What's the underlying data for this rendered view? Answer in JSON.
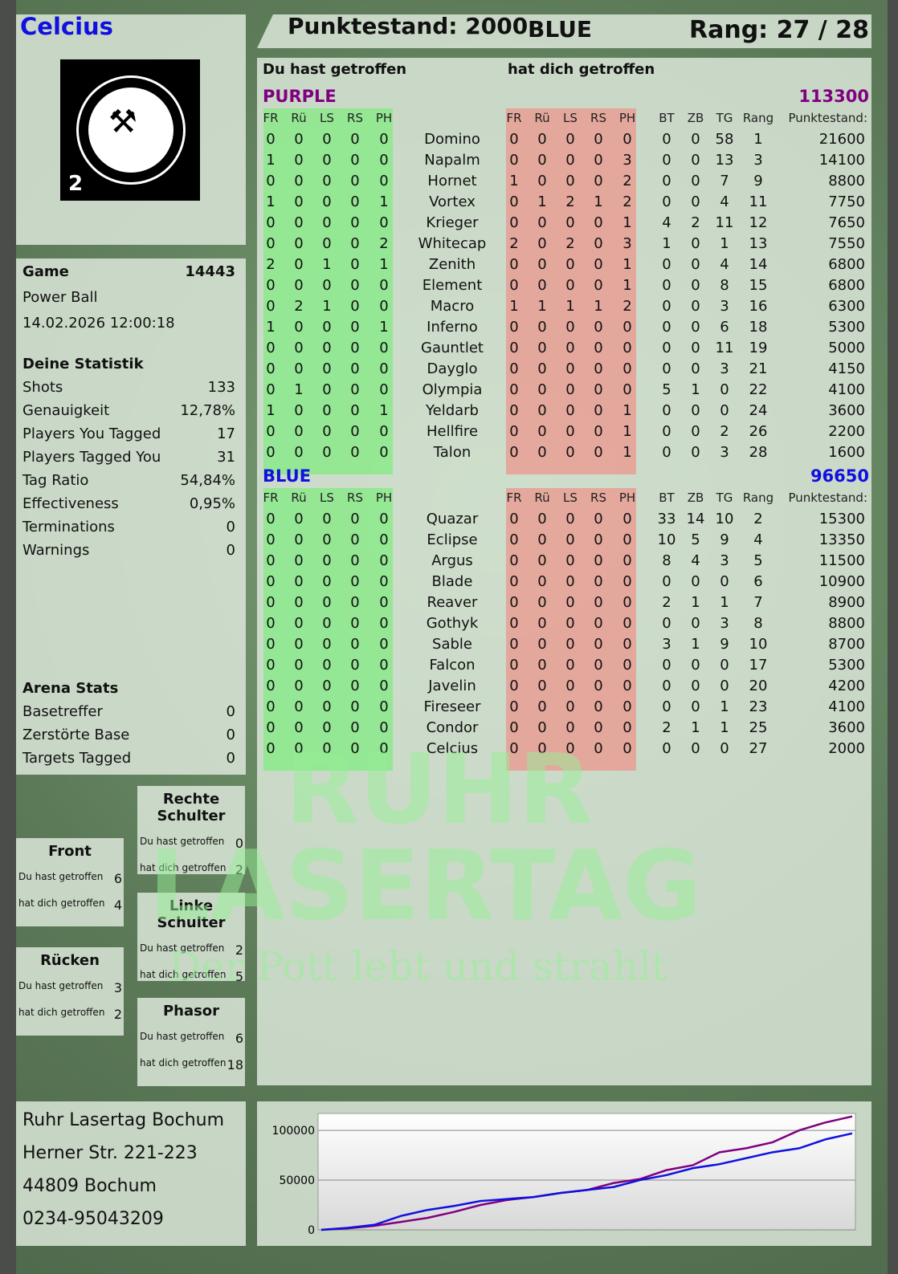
{
  "header": {
    "player": "Celcius",
    "score_label": "Punktestand: 2000",
    "team": "BLUE",
    "rank_label": "Rang: 27 / 28"
  },
  "logo": {
    "text": "RUHR LASERTAG",
    "badge": "2"
  },
  "game": {
    "label": "Game",
    "id": "14443",
    "mode": "Power Ball",
    "datetime": "14.02.2026 12:00:18"
  },
  "stats": {
    "heading": "Deine Statistik",
    "items": [
      {
        "label": "Shots",
        "value": "133"
      },
      {
        "label": "Genauigkeit",
        "value": "12,78%"
      },
      {
        "label": "Players You Tagged",
        "value": "17"
      },
      {
        "label": "Players Tagged You",
        "value": "31"
      },
      {
        "label": "Tag Ratio",
        "value": "54,84%"
      },
      {
        "label": "Effectiveness",
        "value": "0,95%"
      },
      {
        "label": "Terminations",
        "value": "0"
      },
      {
        "label": "Warnings",
        "value": "0"
      }
    ]
  },
  "arena": {
    "heading": "Arena Stats",
    "items": [
      {
        "label": "Basetreffer",
        "value": "0"
      },
      {
        "label": "Zerstörte Base",
        "value": "0"
      },
      {
        "label": "Targets Tagged",
        "value": "0"
      }
    ]
  },
  "hits": {
    "you_hit": "Du hast getroffen",
    "hit_you": "hat dich getroffen",
    "zones": [
      {
        "name": "Rechte Schulter",
        "you_hit": "0",
        "hit_you": "2"
      },
      {
        "name": "Front",
        "you_hit": "6",
        "hit_you": "4"
      },
      {
        "name": "Linke Schulter",
        "you_hit": "2",
        "hit_you": "5"
      },
      {
        "name": "Rücken",
        "you_hit": "3",
        "hit_you": "2"
      },
      {
        "name": "Phasor",
        "you_hit": "6",
        "hit_you": "18"
      }
    ]
  },
  "address": [
    "Ruhr Lasertag Bochum",
    "Herner Str. 221-223",
    "44809 Bochum",
    "0234-95043209"
  ],
  "table": {
    "you_hit_label": "Du hast getroffen",
    "hit_you_label": "hat dich getroffen",
    "hit_cols": [
      "FR",
      "Rü",
      "LS",
      "RS",
      "PH"
    ],
    "stat_cols": [
      "BT",
      "ZB",
      "TG",
      "Rang"
    ],
    "points_col": "Punktestand:",
    "teams": [
      {
        "name": "PURPLE",
        "color": "#800080",
        "total": "113300",
        "players": [
          [
            "Domino",
            [
              0,
              0,
              0,
              0,
              0
            ],
            [
              0,
              0,
              0,
              0,
              0
            ],
            [
              0,
              0,
              58,
              1
            ],
            21600
          ],
          [
            "Napalm",
            [
              1,
              0,
              0,
              0,
              0
            ],
            [
              0,
              0,
              0,
              0,
              3
            ],
            [
              0,
              0,
              13,
              3
            ],
            14100
          ],
          [
            "Hornet",
            [
              0,
              0,
              0,
              0,
              0
            ],
            [
              1,
              0,
              0,
              0,
              2
            ],
            [
              0,
              0,
              7,
              9
            ],
            8800
          ],
          [
            "Vortex",
            [
              1,
              0,
              0,
              0,
              1
            ],
            [
              0,
              1,
              2,
              1,
              2
            ],
            [
              0,
              0,
              4,
              11
            ],
            7750
          ],
          [
            "Krieger",
            [
              0,
              0,
              0,
              0,
              0
            ],
            [
              0,
              0,
              0,
              0,
              1
            ],
            [
              4,
              2,
              11,
              12
            ],
            7650
          ],
          [
            "Whitecap",
            [
              0,
              0,
              0,
              0,
              2
            ],
            [
              2,
              0,
              2,
              0,
              3
            ],
            [
              1,
              0,
              1,
              13
            ],
            7550
          ],
          [
            "Zenith",
            [
              2,
              0,
              1,
              0,
              1
            ],
            [
              0,
              0,
              0,
              0,
              1
            ],
            [
              0,
              0,
              4,
              14
            ],
            6800
          ],
          [
            "Element",
            [
              0,
              0,
              0,
              0,
              0
            ],
            [
              0,
              0,
              0,
              0,
              1
            ],
            [
              0,
              0,
              8,
              15
            ],
            6800
          ],
          [
            "Macro",
            [
              0,
              2,
              1,
              0,
              0
            ],
            [
              1,
              1,
              1,
              1,
              2
            ],
            [
              0,
              0,
              3,
              16
            ],
            6300
          ],
          [
            "Inferno",
            [
              1,
              0,
              0,
              0,
              1
            ],
            [
              0,
              0,
              0,
              0,
              0
            ],
            [
              0,
              0,
              6,
              18
            ],
            5300
          ],
          [
            "Gauntlet",
            [
              0,
              0,
              0,
              0,
              0
            ],
            [
              0,
              0,
              0,
              0,
              0
            ],
            [
              0,
              0,
              11,
              19
            ],
            5000
          ],
          [
            "Dayglo",
            [
              0,
              0,
              0,
              0,
              0
            ],
            [
              0,
              0,
              0,
              0,
              0
            ],
            [
              0,
              0,
              3,
              21
            ],
            4150
          ],
          [
            "Olympia",
            [
              0,
              1,
              0,
              0,
              0
            ],
            [
              0,
              0,
              0,
              0,
              0
            ],
            [
              5,
              1,
              0,
              22
            ],
            4100
          ],
          [
            "Yeldarb",
            [
              1,
              0,
              0,
              0,
              1
            ],
            [
              0,
              0,
              0,
              0,
              1
            ],
            [
              0,
              0,
              0,
              24
            ],
            3600
          ],
          [
            "Hellfire",
            [
              0,
              0,
              0,
              0,
              0
            ],
            [
              0,
              0,
              0,
              0,
              1
            ],
            [
              0,
              0,
              2,
              26
            ],
            2200
          ],
          [
            "Talon",
            [
              0,
              0,
              0,
              0,
              0
            ],
            [
              0,
              0,
              0,
              0,
              1
            ],
            [
              0,
              0,
              3,
              28
            ],
            1600
          ]
        ]
      },
      {
        "name": "BLUE",
        "color": "#1010e0",
        "total": "96650",
        "players": [
          [
            "Quazar",
            [
              0,
              0,
              0,
              0,
              0
            ],
            [
              0,
              0,
              0,
              0,
              0
            ],
            [
              33,
              14,
              10,
              2
            ],
            15300
          ],
          [
            "Eclipse",
            [
              0,
              0,
              0,
              0,
              0
            ],
            [
              0,
              0,
              0,
              0,
              0
            ],
            [
              10,
              5,
              9,
              4
            ],
            13350
          ],
          [
            "Argus",
            [
              0,
              0,
              0,
              0,
              0
            ],
            [
              0,
              0,
              0,
              0,
              0
            ],
            [
              8,
              4,
              3,
              5
            ],
            11500
          ],
          [
            "Blade",
            [
              0,
              0,
              0,
              0,
              0
            ],
            [
              0,
              0,
              0,
              0,
              0
            ],
            [
              0,
              0,
              0,
              6
            ],
            10900
          ],
          [
            "Reaver",
            [
              0,
              0,
              0,
              0,
              0
            ],
            [
              0,
              0,
              0,
              0,
              0
            ],
            [
              2,
              1,
              1,
              7
            ],
            8900
          ],
          [
            "Gothyk",
            [
              0,
              0,
              0,
              0,
              0
            ],
            [
              0,
              0,
              0,
              0,
              0
            ],
            [
              0,
              0,
              3,
              8
            ],
            8800
          ],
          [
            "Sable",
            [
              0,
              0,
              0,
              0,
              0
            ],
            [
              0,
              0,
              0,
              0,
              0
            ],
            [
              3,
              1,
              9,
              10
            ],
            8700
          ],
          [
            "Falcon",
            [
              0,
              0,
              0,
              0,
              0
            ],
            [
              0,
              0,
              0,
              0,
              0
            ],
            [
              0,
              0,
              0,
              17
            ],
            5300
          ],
          [
            "Javelin",
            [
              0,
              0,
              0,
              0,
              0
            ],
            [
              0,
              0,
              0,
              0,
              0
            ],
            [
              0,
              0,
              0,
              20
            ],
            4200
          ],
          [
            "Fireseer",
            [
              0,
              0,
              0,
              0,
              0
            ],
            [
              0,
              0,
              0,
              0,
              0
            ],
            [
              0,
              0,
              1,
              23
            ],
            4100
          ],
          [
            "Condor",
            [
              0,
              0,
              0,
              0,
              0
            ],
            [
              0,
              0,
              0,
              0,
              0
            ],
            [
              2,
              1,
              1,
              25
            ],
            3600
          ],
          [
            "Celcius",
            [
              0,
              0,
              0,
              0,
              0
            ],
            [
              0,
              0,
              0,
              0,
              0
            ],
            [
              0,
              0,
              0,
              27
            ],
            2000
          ]
        ]
      }
    ]
  },
  "watermark": {
    "line1": "RUHR",
    "line2": "LASERTAG",
    "slogan": "Der Pott lebt und strahlt"
  },
  "chart_data": {
    "type": "line",
    "title": "",
    "xlabel": "",
    "ylabel": "",
    "ylim": [
      0,
      117000
    ],
    "yticks": [
      "100000",
      "50000",
      "0"
    ],
    "grid": true,
    "x": [
      0,
      1,
      2,
      3,
      4,
      5,
      6,
      7,
      8,
      9,
      10,
      11,
      12,
      13,
      14,
      15,
      16,
      17,
      18,
      19,
      20
    ],
    "series": [
      {
        "color": "#800080",
        "values": [
          0,
          1500,
          4000,
          8000,
          12000,
          18000,
          25000,
          30000,
          33000,
          37000,
          40000,
          47000,
          51000,
          60000,
          65000,
          78000,
          82000,
          88000,
          100000,
          108000,
          114000
        ]
      },
      {
        "color": "#1010e0",
        "values": [
          0,
          2000,
          5000,
          14000,
          20000,
          24000,
          29000,
          31000,
          33000,
          37000,
          40000,
          43000,
          50000,
          55000,
          62000,
          66000,
          72000,
          78000,
          82000,
          91000,
          97000
        ]
      }
    ]
  }
}
